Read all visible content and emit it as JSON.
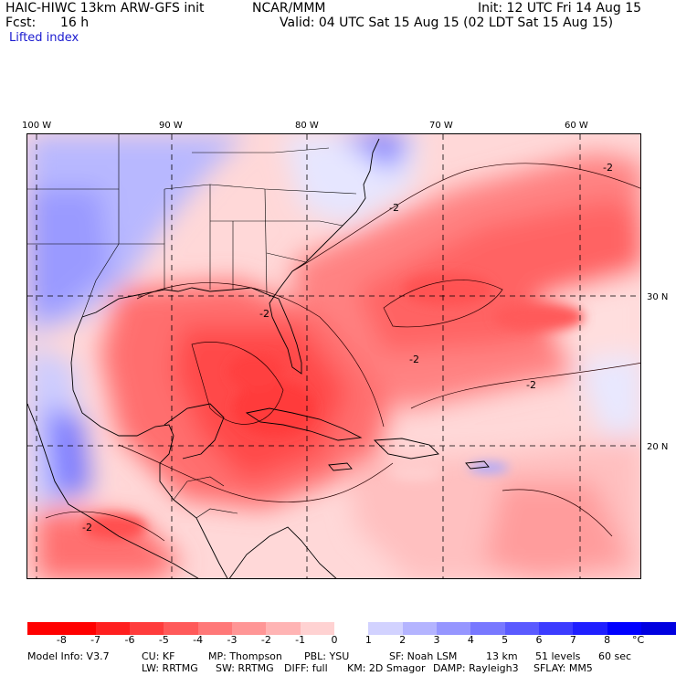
{
  "header": {
    "model_title": "HAIC-HIWC 13km ARW-GFS init",
    "org": "NCAR/MMM",
    "init": "Init: 12 UTC Fri 14 Aug 15",
    "fcst_label": "Fcst:",
    "fcst_value": "16 h",
    "valid": "Valid: 04 UTC Sat 15 Aug 15 (02 LDT Sat 15 Aug 15)",
    "field": "Lifted index"
  },
  "axes": {
    "lon_labels": [
      "100 W",
      "90 W",
      "80 W",
      "70 W",
      "60 W"
    ],
    "lat_labels": [
      "30 N",
      "20 N"
    ]
  },
  "colorbar": {
    "labels": [
      "-8",
      "-7",
      "-6",
      "-5",
      "-4",
      "-3",
      "-2",
      "-1",
      "0",
      "1",
      "2",
      "3",
      "4",
      "5",
      "6",
      "7",
      "8"
    ],
    "unit": "°C",
    "colors": [
      "#ff0000",
      "#ff1f1f",
      "#ff3c3c",
      "#ff5a5a",
      "#ff7878",
      "#ff9696",
      "#ffb4b4",
      "#ffd2d2",
      "#ffffff",
      "#d2d2ff",
      "#b4b4ff",
      "#9696ff",
      "#7878ff",
      "#5a5aff",
      "#3c3cff",
      "#1f1fff",
      "#0000ff"
    ]
  },
  "footer": {
    "line1": [
      "Model Info: V3.7",
      "CU: KF",
      "MP: Thompson",
      "PBL: YSU",
      "SF: Noah LSM",
      "13 km",
      "51 levels",
      "60 sec"
    ],
    "line2": [
      "LW: RRTMG",
      "SW: RRTMG",
      "DIFF: full",
      "KM: 2D Smagor",
      "DAMP: Rayleigh3",
      "SFLAY: MM5"
    ]
  },
  "contour_labels": [
    "-2",
    "-2",
    "-2",
    "-2",
    "-2",
    "-2"
  ]
}
